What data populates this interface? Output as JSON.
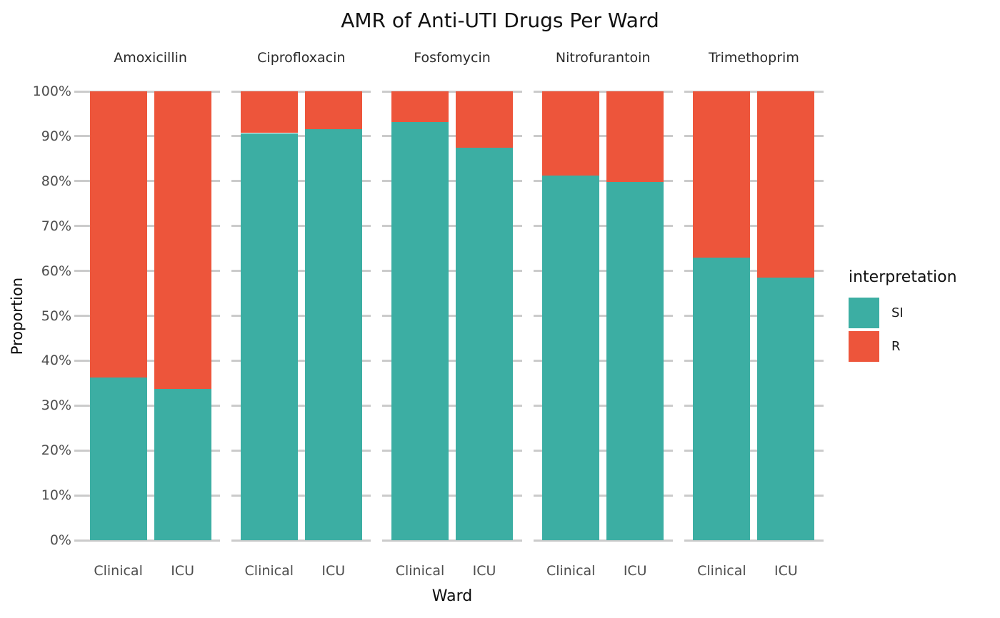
{
  "chart_data": {
    "type": "bar",
    "stacked": true,
    "normalized": "percent",
    "title": "AMR of Anti-UTI Drugs Per Ward",
    "xlabel": "Ward",
    "ylabel": "Proportion",
    "categories": [
      "Clinical",
      "ICU"
    ],
    "y_axis": {
      "min": 0,
      "max": 100,
      "ticks_top_down": [
        "100%",
        "90%",
        "80%",
        "70%",
        "60%",
        "50%",
        "40%",
        "30%",
        "20%",
        "10%",
        "0%"
      ],
      "grid": true
    },
    "legend": {
      "title": "interpretation",
      "position": "right",
      "entries": [
        {
          "label": "SI",
          "color": "#3CAEA3"
        },
        {
          "label": "R",
          "color": "#ED553B"
        }
      ]
    },
    "colors": {
      "SI": "#3CAEA3",
      "R": "#ED553B",
      "grid": "#CBCBCB"
    },
    "facets": [
      {
        "label": "Amoxicillin",
        "bars": [
          {
            "ward": "Clinical",
            "SI_pct": 36.2,
            "R_pct": 63.8
          },
          {
            "ward": "ICU",
            "SI_pct": 33.7,
            "R_pct": 66.3
          }
        ]
      },
      {
        "label": "Ciprofloxacin",
        "bars": [
          {
            "ward": "Clinical",
            "SI_pct": 90.7,
            "R_pct": 9.3
          },
          {
            "ward": "ICU",
            "SI_pct": 91.5,
            "R_pct": 8.5
          }
        ]
      },
      {
        "label": "Fosfomycin",
        "bars": [
          {
            "ward": "Clinical",
            "SI_pct": 93.1,
            "R_pct": 6.9
          },
          {
            "ward": "ICU",
            "SI_pct": 87.4,
            "R_pct": 12.6
          }
        ]
      },
      {
        "label": "Nitrofurantoin",
        "bars": [
          {
            "ward": "Clinical",
            "SI_pct": 81.2,
            "R_pct": 18.8
          },
          {
            "ward": "ICU",
            "SI_pct": 79.8,
            "R_pct": 20.2
          }
        ]
      },
      {
        "label": "Trimethoprim",
        "bars": [
          {
            "ward": "Clinical",
            "SI_pct": 62.9,
            "R_pct": 37.1
          },
          {
            "ward": "ICU",
            "SI_pct": 58.5,
            "R_pct": 41.5
          }
        ]
      }
    ]
  }
}
